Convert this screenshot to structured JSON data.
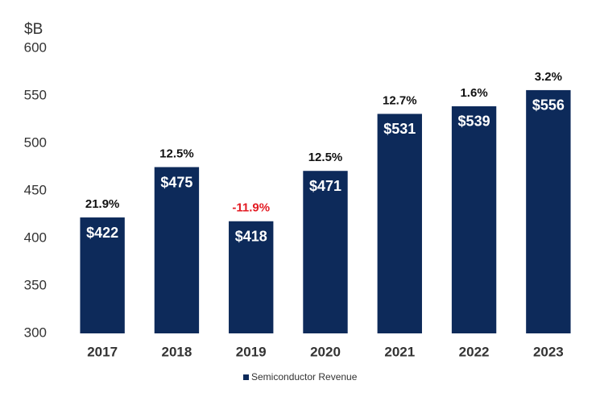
{
  "chart_data": {
    "type": "bar",
    "y_axis_label": "$B",
    "categories": [
      "2017",
      "2018",
      "2019",
      "2020",
      "2021",
      "2022",
      "2023"
    ],
    "series": [
      {
        "name": "Semiconductor Revenue",
        "color": "#0d2a5a",
        "values": [
          422,
          475,
          418,
          471,
          531,
          539,
          556
        ],
        "value_labels": [
          "$422",
          "$475",
          "$418",
          "$471",
          "$531",
          "$539",
          "$556"
        ]
      }
    ],
    "growth": {
      "values": [
        21.9,
        12.5,
        -11.9,
        12.5,
        12.7,
        1.6,
        3.2
      ],
      "value_labels": [
        "21.9%",
        "12.5%",
        "-11.9%",
        "12.5%",
        "12.7%",
        "1.6%",
        "3.2%"
      ],
      "color": "#111111",
      "negative_color": "#e31b23"
    },
    "ylim": [
      300,
      600
    ],
    "yticks": [
      300,
      350,
      400,
      450,
      500,
      550,
      600
    ],
    "grid": false,
    "legend": "bottom"
  }
}
